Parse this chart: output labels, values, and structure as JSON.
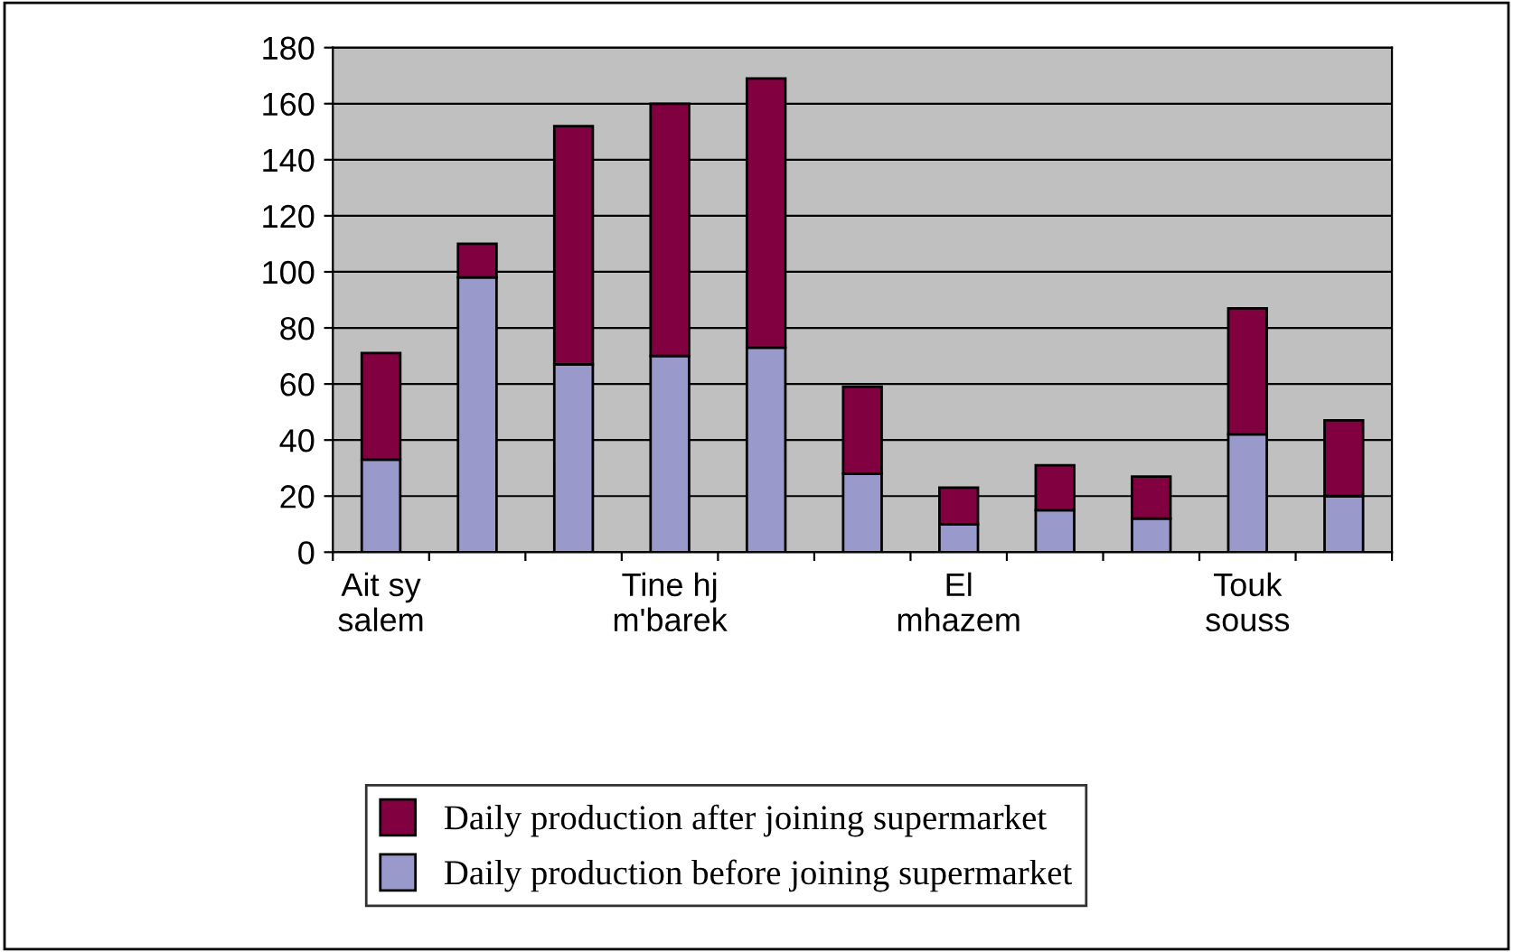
{
  "chart_data": {
    "type": "bar",
    "stacked": true,
    "categories": [
      "Ait sy\nsalem",
      null,
      null,
      "Tine hj\nm'barek",
      null,
      null,
      "El\nmhazem",
      null,
      null,
      "Touk\nsouss",
      null
    ],
    "series": [
      {
        "name": "Daily production before joining supermarket",
        "color": "#9999cc",
        "values": [
          33,
          98,
          67,
          70,
          73,
          28,
          10,
          15,
          12,
          42,
          20
        ]
      },
      {
        "name": "Daily production after joining supermarket",
        "color": "#800040",
        "values": [
          38,
          12,
          85,
          90,
          96,
          31,
          13,
          16,
          15,
          45,
          27
        ]
      }
    ],
    "ylim": [
      0,
      180
    ],
    "yticks": [
      0,
      20,
      40,
      60,
      80,
      100,
      120,
      140,
      160,
      180
    ],
    "grid": "y",
    "legend": "bottom"
  }
}
